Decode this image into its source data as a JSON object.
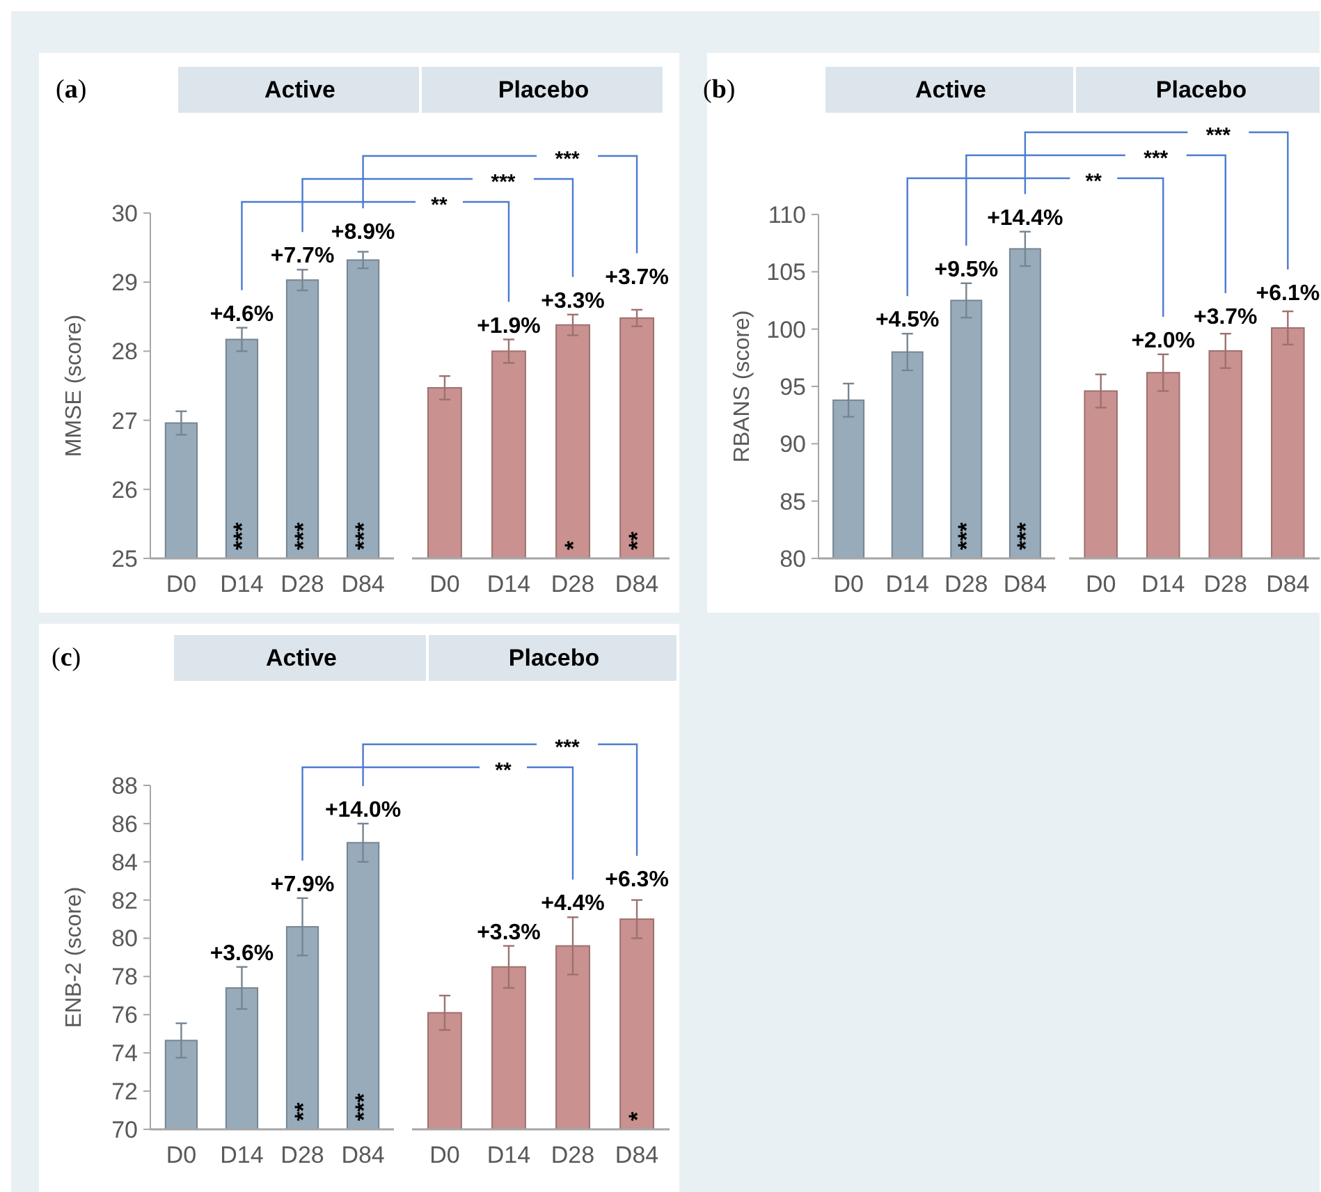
{
  "chart_data": [
    {
      "type": "bar",
      "title": "Active",
      "ylabel": "MMSE (score)",
      "categories": [
        "D0",
        "D14",
        "D28",
        "D84"
      ],
      "values": [
        26.96,
        28.17,
        29.03,
        29.32
      ],
      "errors": [
        0.17,
        0.17,
        0.15,
        0.12
      ],
      "color": "#98abbb",
      "ylim": [
        25,
        30
      ],
      "yticks": [
        25,
        26,
        27,
        28,
        29,
        30
      ],
      "value_labels": [
        null,
        "***",
        "***",
        "***"
      ],
      "annotations": [
        "(a)",
        {
          "text": "+4.6%",
          "x": "D14",
          "y": 28.17
        },
        {
          "text": "+7.7%",
          "x": "D28",
          "y": 29.03
        },
        {
          "text": "+8.9%",
          "x": "D84",
          "y": 29.32
        }
      ]
    },
    {
      "type": "bar",
      "title": "Placebo",
      "categories": [
        "D0",
        "D14",
        "D28",
        "D84"
      ],
      "values": [
        27.47,
        28.0,
        28.38,
        28.48
      ],
      "errors": [
        0.17,
        0.17,
        0.15,
        0.12
      ],
      "color": "#c9918f",
      "ylim": [
        25,
        30
      ],
      "tick_labels": "x",
      "value_labels": [
        null,
        null,
        "*",
        "**"
      ],
      "annotations": [
        {
          "text": "+1.9%",
          "x": "D14",
          "y": 28.0
        },
        {
          "text": "+3.3%",
          "x": "D28",
          "y": 28.38
        },
        {
          "text": "+3.7%",
          "x": "D84",
          "y": 28.48
        },
        "**",
        "***",
        "***"
      ]
    },
    {
      "type": "bar",
      "title": "Active",
      "ylabel": "RBANS (score)",
      "categories": [
        "D0",
        "D14",
        "D28",
        "D84"
      ],
      "values": [
        93.8,
        98.0,
        102.5,
        107.0
      ],
      "errors": [
        1.45,
        1.6,
        1.5,
        1.5
      ],
      "color": "#98abbb",
      "ylim": [
        80,
        110
      ],
      "yticks": [
        80,
        85,
        90,
        95,
        100,
        105,
        110
      ],
      "value_labels": [
        null,
        null,
        "***",
        "***"
      ],
      "annotations": [
        "(b)",
        {
          "text": "+4.5%",
          "x": "D14",
          "y": 98.0
        },
        {
          "text": "+9.5%",
          "x": "D28",
          "y": 102.5
        },
        {
          "text": "+14.4%",
          "x": "D84",
          "y": 107.0
        }
      ]
    },
    {
      "type": "bar",
      "title": "Placebo",
      "categories": [
        "D0",
        "D14",
        "D28",
        "D84"
      ],
      "values": [
        94.6,
        96.2,
        98.1,
        100.1
      ],
      "errors": [
        1.45,
        1.6,
        1.5,
        1.45
      ],
      "color": "#c9918f",
      "ylim": [
        80,
        110
      ],
      "tick_labels": "x",
      "annotations": [
        {
          "text": "+2.0%",
          "x": "D14",
          "y": 96.2
        },
        {
          "text": "+3.7%",
          "x": "D28",
          "y": 98.1
        },
        {
          "text": "+6.1%",
          "x": "D84",
          "y": 100.1
        },
        "**",
        "***",
        "***"
      ]
    },
    {
      "type": "bar",
      "title": "Active",
      "ylabel": "ENB-2 (score)",
      "categories": [
        "D0",
        "D14",
        "D28",
        "D84"
      ],
      "values": [
        74.65,
        77.4,
        80.6,
        85.0
      ],
      "errors": [
        0.9,
        1.1,
        1.5,
        1.0
      ],
      "color": "#98abbb",
      "ylim": [
        70,
        88
      ],
      "yticks": [
        70,
        72,
        74,
        76,
        78,
        80,
        82,
        84,
        86,
        88
      ],
      "value_labels": [
        null,
        null,
        "**",
        "***"
      ],
      "annotations": [
        "(c)",
        {
          "text": "+3.6%",
          "x": "D14",
          "y": 77.4
        },
        {
          "text": "+7.9%",
          "x": "D28",
          "y": 80.6
        },
        {
          "text": "+14.0%",
          "x": "D84",
          "y": 85.0
        }
      ]
    },
    {
      "type": "bar",
      "title": "Placebo",
      "categories": [
        "D0",
        "D14",
        "D28",
        "D84"
      ],
      "values": [
        76.1,
        78.5,
        79.6,
        81.0
      ],
      "errors": [
        0.9,
        1.1,
        1.5,
        1.0
      ],
      "color": "#c9918f",
      "ylim": [
        70,
        88
      ],
      "tick_labels": "x",
      "value_labels": [
        null,
        null,
        null,
        "*"
      ],
      "annotations": [
        {
          "text": "+3.3%",
          "x": "D14",
          "y": 78.5
        },
        {
          "text": "+4.4%",
          "x": "D28",
          "y": 79.6
        },
        {
          "text": "+6.3%",
          "x": "D84",
          "y": 81.0
        },
        "**",
        "***"
      ]
    }
  ]
}
